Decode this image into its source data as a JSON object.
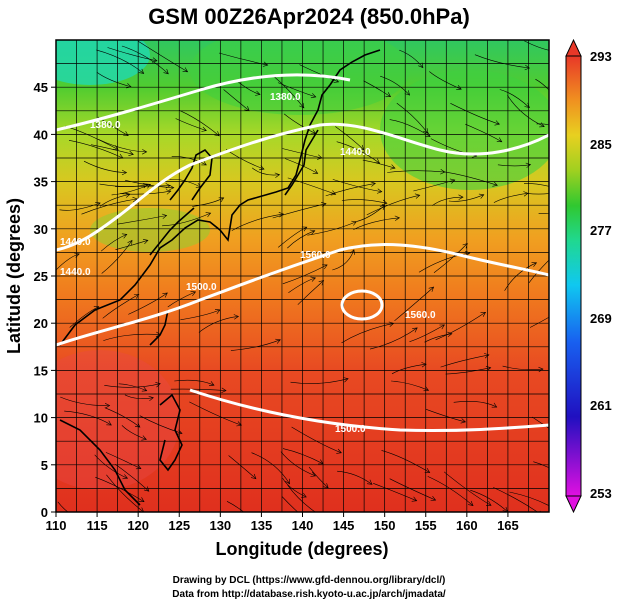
{
  "title": "GSM 00Z26Apr2024 (850.0hPa)",
  "xlabel": "Longitude (degrees)",
  "ylabel": "Latitude  (degrees)",
  "x_ticks": [
    "110",
    "115",
    "120",
    "125",
    "130",
    "135",
    "140",
    "145",
    "150",
    "155",
    "160",
    "165"
  ],
  "y_ticks": [
    "0",
    "5",
    "10",
    "15",
    "20",
    "25",
    "30",
    "35",
    "40",
    "45"
  ],
  "colorbar_labels": [
    "293",
    "285",
    "277",
    "269",
    "261",
    "253"
  ],
  "credit_line1": "Drawing by DCL (https://www.gfd-dennou.org/library/dcl/)",
  "credit_line2": "Data from http://database.rish.kyoto-u.ac.jp/arch/jmadata/",
  "contour_labels": [
    "1440.0",
    "1380.0",
    "1440.0",
    "1560.0",
    "1500.0",
    "1560.0",
    "1500.0",
    "1380.0",
    "1440.0"
  ],
  "colors": {
    "warm": "#e8352a",
    "orange": "#f08a1e",
    "yellow": "#e8d020",
    "green": "#3cc83c",
    "cyan": "#10d0c0",
    "blue": "#1040d0",
    "magenta": "#d010d0"
  },
  "chart_data": {
    "type": "heatmap",
    "title": "GSM 00Z26Apr2024 (850.0hPa)",
    "xlabel": "Longitude (degrees)",
    "ylabel": "Latitude  (degrees)",
    "xlim": [
      110,
      170
    ],
    "ylim": [
      0,
      50
    ],
    "colorbar_range": [
      253,
      293
    ],
    "colorbar_ticks": [
      293,
      285,
      277,
      269,
      261,
      253
    ],
    "grid": true
  }
}
